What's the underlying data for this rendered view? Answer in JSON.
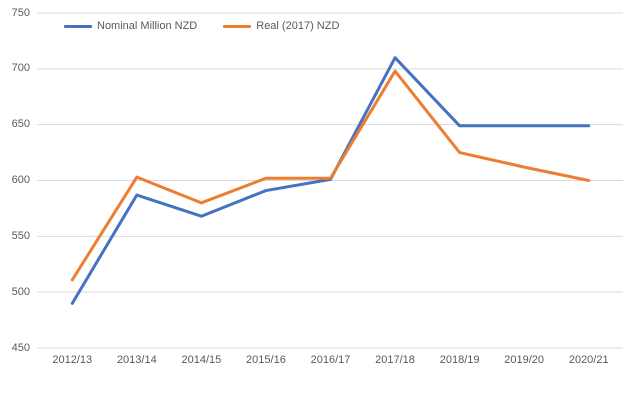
{
  "chart_data": {
    "type": "line",
    "title": "",
    "xlabel": "",
    "ylabel": "",
    "categories": [
      "2012/13",
      "2013/14",
      "2014/15",
      "2015/16",
      "2016/17",
      "2017/18",
      "2018/19",
      "2019/20",
      "2020/21"
    ],
    "series": [
      {
        "name": "Nominal Million NZD",
        "color": "#4472C4",
        "values": [
          490,
          587,
          568,
          591,
          601,
          710,
          649,
          649,
          649
        ]
      },
      {
        "name": "Real (2017) NZD",
        "color": "#ED7D31",
        "values": [
          511,
          603,
          580,
          602,
          602,
          698,
          625,
          612,
          600
        ]
      }
    ],
    "ylim": [
      450,
      750
    ],
    "ytick_step": 50,
    "ytick_labels": [
      "450",
      "500",
      "550",
      "600",
      "650",
      "700",
      "750"
    ],
    "grid": "horizontal",
    "gridline_color": "#D9D9D9",
    "axis_label_color": "#595959",
    "legend_position": "top-left-inside"
  }
}
